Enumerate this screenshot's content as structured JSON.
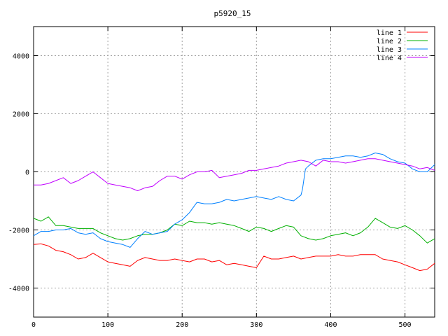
{
  "chart_data": {
    "type": "line",
    "title": "p5920_15",
    "xlabel": "",
    "ylabel": "",
    "xlim": [
      0,
      540
    ],
    "ylim": [
      -5000,
      5000
    ],
    "xticks": [
      0,
      100,
      200,
      300,
      400,
      500
    ],
    "yticks": [
      -4000,
      -2000,
      0,
      2000,
      4000
    ],
    "grid": true,
    "legend_position": "top-right",
    "series": [
      {
        "name": "line 1",
        "color": "#ff0000",
        "x": [
          0,
          10,
          20,
          30,
          40,
          50,
          60,
          70,
          80,
          90,
          100,
          110,
          120,
          130,
          140,
          150,
          160,
          170,
          180,
          190,
          200,
          210,
          220,
          230,
          240,
          250,
          260,
          270,
          280,
          290,
          300,
          310,
          320,
          330,
          340,
          350,
          360,
          370,
          380,
          390,
          400,
          410,
          420,
          430,
          440,
          450,
          460,
          470,
          480,
          490,
          500,
          510,
          520,
          530,
          540
        ],
        "values": [
          -2500,
          -2480,
          -2550,
          -2700,
          -2750,
          -2850,
          -3000,
          -2950,
          -2800,
          -2950,
          -3100,
          -3150,
          -3200,
          -3250,
          -3050,
          -2950,
          -3000,
          -3050,
          -3050,
          -3000,
          -3050,
          -3100,
          -3000,
          -3000,
          -3100,
          -3050,
          -3200,
          -3150,
          -3200,
          -3250,
          -3300,
          -2900,
          -3000,
          -3000,
          -2950,
          -2900,
          -3000,
          -2950,
          -2900,
          -2900,
          -2900,
          -2850,
          -2900,
          -2900,
          -2850,
          -2850,
          -2850,
          -3000,
          -3050,
          -3100,
          -3200,
          -3300,
          -3400,
          -3350,
          -3150
        ]
      },
      {
        "name": "line 2",
        "color": "#00b000",
        "x": [
          0,
          10,
          20,
          30,
          40,
          50,
          60,
          70,
          80,
          90,
          100,
          110,
          120,
          130,
          140,
          150,
          160,
          170,
          180,
          190,
          200,
          210,
          220,
          230,
          240,
          250,
          260,
          270,
          280,
          290,
          300,
          310,
          320,
          330,
          340,
          350,
          360,
          370,
          380,
          390,
          400,
          410,
          420,
          430,
          440,
          450,
          460,
          470,
          480,
          490,
          500,
          510,
          520,
          530,
          540
        ],
        "values": [
          -1600,
          -1700,
          -1550,
          -1850,
          -1850,
          -1900,
          -1950,
          -1950,
          -1950,
          -2100,
          -2200,
          -2300,
          -2350,
          -2300,
          -2200,
          -2150,
          -2150,
          -2100,
          -2000,
          -1800,
          -1850,
          -1700,
          -1750,
          -1750,
          -1800,
          -1750,
          -1800,
          -1850,
          -1950,
          -2050,
          -1900,
          -1950,
          -2050,
          -1950,
          -1850,
          -1900,
          -2200,
          -2300,
          -2350,
          -2300,
          -2200,
          -2150,
          -2100,
          -2200,
          -2100,
          -1900,
          -1600,
          -1750,
          -1900,
          -1950,
          -1850,
          -2000,
          -2200,
          -2450,
          -2300
        ]
      },
      {
        "name": "line 3",
        "color": "#0080ff",
        "x": [
          0,
          10,
          20,
          30,
          40,
          50,
          60,
          70,
          80,
          90,
          100,
          110,
          120,
          130,
          140,
          150,
          160,
          170,
          180,
          190,
          200,
          210,
          220,
          230,
          240,
          250,
          260,
          270,
          280,
          290,
          300,
          310,
          320,
          330,
          340,
          350,
          360,
          362,
          364,
          366,
          370,
          380,
          390,
          400,
          410,
          420,
          430,
          440,
          450,
          460,
          470,
          480,
          490,
          500,
          510,
          520,
          530,
          540
        ],
        "values": [
          -2200,
          -2050,
          -2050,
          -2000,
          -2000,
          -1950,
          -2100,
          -2150,
          -2100,
          -2300,
          -2400,
          -2450,
          -2500,
          -2600,
          -2300,
          -2050,
          -2150,
          -2100,
          -2050,
          -1800,
          -1650,
          -1400,
          -1050,
          -1100,
          -1100,
          -1050,
          -950,
          -1000,
          -950,
          -900,
          -850,
          -900,
          -950,
          -850,
          -950,
          -1000,
          -800,
          -600,
          -250,
          100,
          200,
          400,
          450,
          450,
          500,
          550,
          550,
          500,
          550,
          650,
          600,
          450,
          350,
          300,
          100,
          0,
          0,
          250
        ]
      },
      {
        "name": "line 4",
        "color": "#c000ff",
        "x": [
          0,
          10,
          20,
          30,
          40,
          50,
          60,
          70,
          80,
          90,
          100,
          110,
          120,
          130,
          140,
          150,
          160,
          170,
          180,
          190,
          200,
          210,
          220,
          230,
          240,
          250,
          260,
          270,
          280,
          290,
          300,
          310,
          320,
          330,
          340,
          350,
          360,
          370,
          380,
          390,
          400,
          410,
          420,
          430,
          440,
          450,
          460,
          470,
          480,
          490,
          500,
          510,
          520,
          530,
          540
        ],
        "values": [
          -450,
          -450,
          -400,
          -300,
          -200,
          -400,
          -300,
          -150,
          0,
          -200,
          -400,
          -450,
          -500,
          -550,
          -650,
          -550,
          -500,
          -300,
          -150,
          -150,
          -250,
          -100,
          0,
          0,
          50,
          -200,
          -150,
          -100,
          -50,
          50,
          50,
          100,
          150,
          200,
          300,
          350,
          400,
          350,
          200,
          400,
          350,
          350,
          300,
          350,
          400,
          450,
          450,
          400,
          350,
          300,
          250,
          200,
          100,
          150,
          50
        ]
      }
    ]
  }
}
